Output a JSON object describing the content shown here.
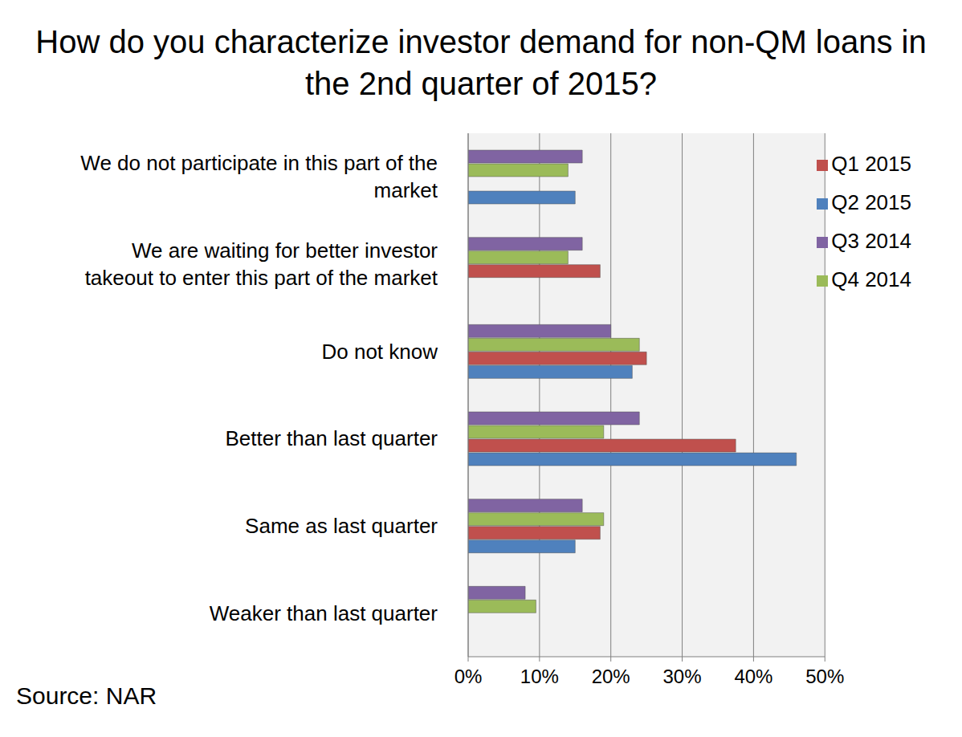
{
  "chart_data": {
    "type": "bar",
    "title": "How do you characterize investor demand for non-QM loans in the 2nd quarter of 2015?",
    "annotations": [
      "Source: NAR"
    ],
    "orientation": "horizontal",
    "grid": true,
    "legend": "top-right",
    "categories": [
      "We do not participate in this part of the market",
      "We are waiting for better investor takeout to enter this part of the market",
      "Do not know",
      "Better than last quarter",
      "Same as last quarter",
      "Weaker than last quarter"
    ],
    "series": [
      {
        "name": "Q3 2014",
        "color": "#8064A2",
        "values": [
          16,
          16,
          20,
          24,
          16,
          8
        ]
      },
      {
        "name": "Q4 2014",
        "color": "#9BBB59",
        "values": [
          14,
          14,
          24,
          19,
          19,
          9.5
        ]
      },
      {
        "name": "Q1 2015",
        "color": "#C0504D",
        "values": [
          null,
          18.5,
          25,
          37.5,
          18.5,
          null
        ]
      },
      {
        "name": "Q2 2015",
        "color": "#4F81BD",
        "values": [
          15,
          null,
          23,
          46,
          15,
          null
        ]
      }
    ],
    "xlim": [
      0,
      50
    ],
    "xticks": [
      {
        "value": 0,
        "label": "0%"
      },
      {
        "value": 10,
        "label": "10%"
      },
      {
        "value": 20,
        "label": "20%"
      },
      {
        "value": 30,
        "label": "30%"
      },
      {
        "value": 40,
        "label": "40%"
      },
      {
        "value": 50,
        "label": "50%"
      }
    ]
  }
}
